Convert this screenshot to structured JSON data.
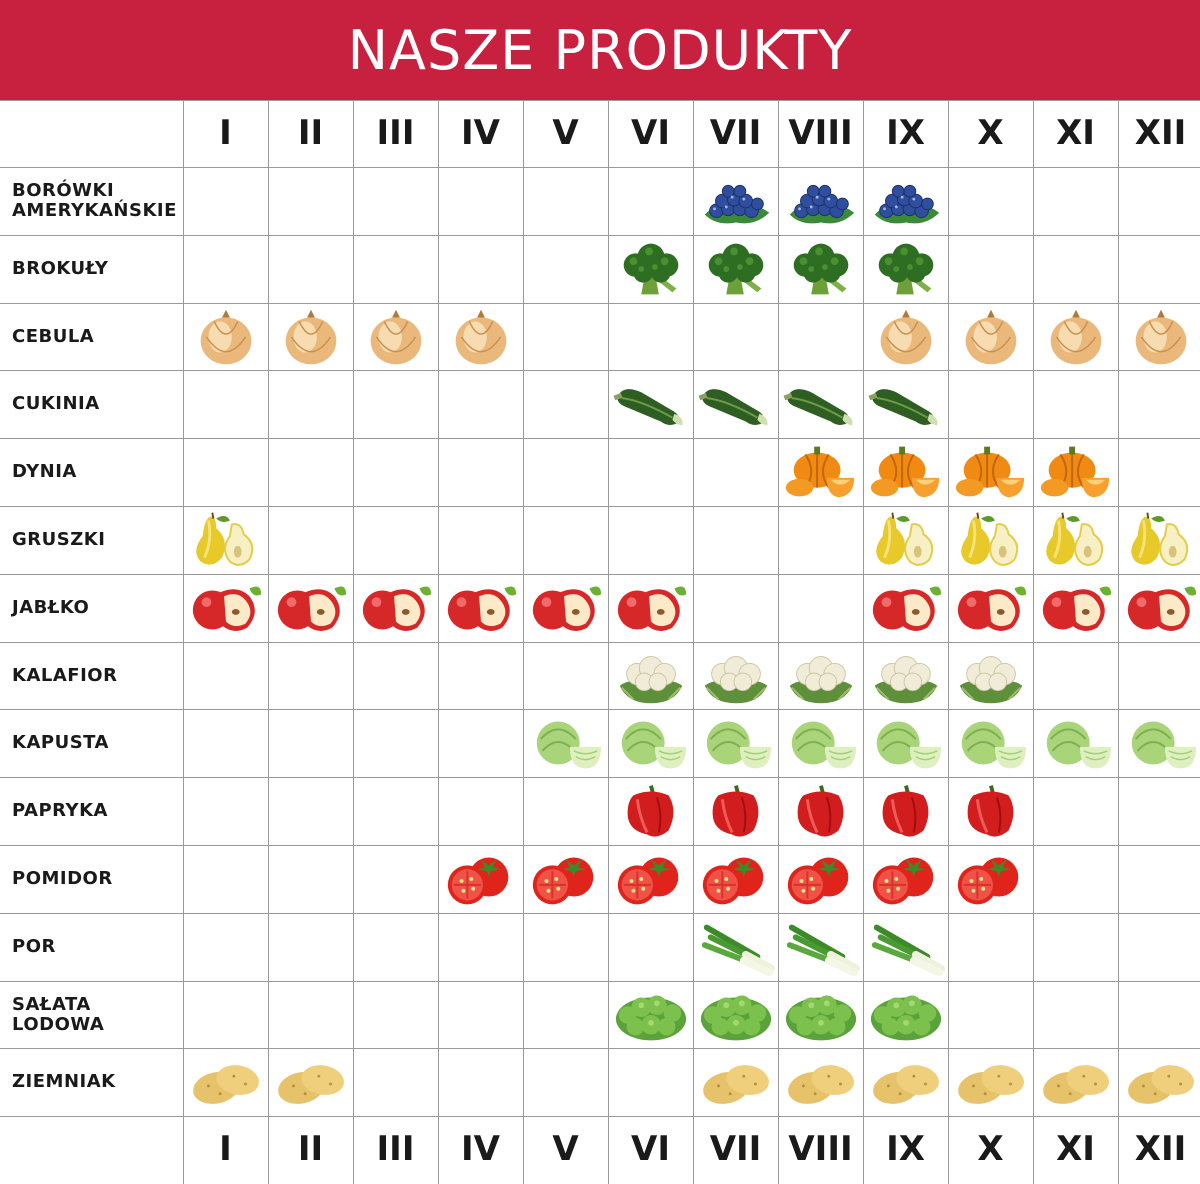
{
  "title": "NASZE PRODUKTY",
  "colors": {
    "banner": "#c8203f",
    "grid": "#9a9a9a",
    "text": "#1a1a1a"
  },
  "months_top": [
    "I",
    "II",
    "III",
    "IV",
    "V",
    "VI",
    "VII",
    "VIII",
    "IX",
    "X",
    "XI",
    "XII"
  ],
  "months_bottom": [
    "I",
    "II",
    "III",
    "IV",
    "V",
    "VI",
    "VII",
    "VIII",
    "IX",
    "X",
    "XI",
    "XII"
  ],
  "products": [
    {
      "label": "BORÓWKI\nAMERYKAŃSKIE",
      "icon": "blueberry-icon",
      "months": [
        7,
        8,
        9
      ]
    },
    {
      "label": "BROKUŁY",
      "icon": "broccoli-icon",
      "months": [
        6,
        7,
        8,
        9
      ]
    },
    {
      "label": "CEBULA",
      "icon": "onion-icon",
      "months": [
        1,
        2,
        3,
        4,
        9,
        10,
        11,
        12
      ]
    },
    {
      "label": "CUKINIA",
      "icon": "zucchini-icon",
      "months": [
        6,
        7,
        8,
        9
      ]
    },
    {
      "label": "DYNIA",
      "icon": "pumpkin-icon",
      "months": [
        8,
        9,
        10,
        11
      ]
    },
    {
      "label": "GRUSZKI",
      "icon": "pear-icon",
      "months": [
        1,
        9,
        10,
        11,
        12
      ]
    },
    {
      "label": "JABŁKO",
      "icon": "apple-icon",
      "months": [
        1,
        2,
        3,
        4,
        5,
        6,
        9,
        10,
        11,
        12
      ]
    },
    {
      "label": "KALAFIOR",
      "icon": "cauliflower-icon",
      "months": [
        6,
        7,
        8,
        9,
        10
      ]
    },
    {
      "label": "KAPUSTA",
      "icon": "cabbage-icon",
      "months": [
        5,
        6,
        7,
        8,
        9,
        10,
        11,
        12
      ]
    },
    {
      "label": "PAPRYKA",
      "icon": "pepper-icon",
      "months": [
        6,
        7,
        8,
        9,
        10
      ]
    },
    {
      "label": "POMIDOR",
      "icon": "tomato-icon",
      "months": [
        4,
        5,
        6,
        7,
        8,
        9,
        10
      ]
    },
    {
      "label": "POR",
      "icon": "leek-icon",
      "months": [
        7,
        8,
        9
      ]
    },
    {
      "label": "SAŁATA\nLODOWA",
      "icon": "lettuce-icon",
      "months": [
        6,
        7,
        8,
        9
      ]
    },
    {
      "label": "ZIEMNIAK",
      "icon": "potato-icon",
      "months": [
        1,
        2,
        7,
        8,
        9,
        10,
        11,
        12
      ]
    }
  ]
}
